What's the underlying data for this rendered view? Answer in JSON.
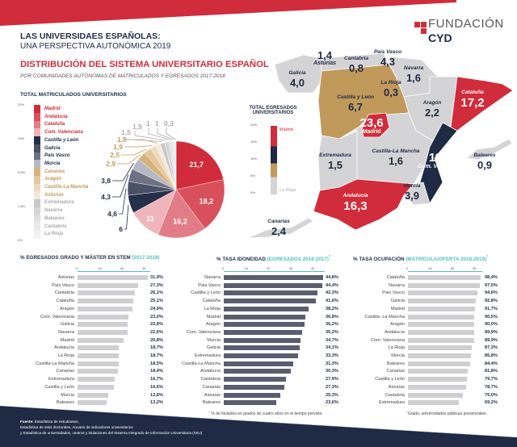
{
  "header": {
    "title": "LAS UNIVERSIDAES ESPAÑOLAS:",
    "subtitle": "UNA PERSPECTIVA AUTONÓMICA 2019",
    "heading": "DISTRIBUCIÓN DEL SISTEMA UNIVERSITARIO ESPAÑOL",
    "subheading": "POR COMUNIDADES AUTÓNOMAS DE MATRICULADOS Y EGRESADOS 2017-2018"
  },
  "logo": {
    "line1": "FUNDACIÓN",
    "line2": "CYD"
  },
  "colors": {
    "red": "#d12c3b",
    "navy": "#1f2a44",
    "gold": "#c19a5b",
    "gray": "#d4d4d6",
    "teal": "#4fc1b8"
  },
  "chart_data": [
    {
      "type": "pie",
      "title": "TOTAL MATRICULADOS UNIVERSITARIOS",
      "scale_ticks": [
        "22%",
        "10%",
        "5,5%",
        "1,5%",
        "0%"
      ],
      "categories": [
        "Madrid",
        "Andalucía",
        "Cataluña",
        "Com. Valenciana",
        "Castilla y León",
        "Galicia",
        "País Vasco",
        "Murcia",
        "Canarias",
        "Aragón",
        "Castilla-La Mancha",
        "Asturias",
        "Extremadura",
        "Navarra",
        "Baleares",
        "Cantabria",
        "La Rioja"
      ],
      "values": [
        21.7,
        18.2,
        16.2,
        11,
        6,
        4.6,
        4.3,
        3.8,
        2.9,
        2.5,
        1.9,
        1.6,
        1.5,
        1.5,
        1,
        1,
        0.3
      ],
      "labels": [
        "21,7",
        "18,2",
        "16,2",
        "11",
        "6",
        "4,6",
        "4,3",
        "3,8",
        "2,9",
        "2,5",
        "1,9",
        "1,6",
        "1,5",
        "1,5",
        "1",
        "1",
        "0,3"
      ],
      "slice_colors": [
        "#d12c3b",
        "#d9505c",
        "#e27c86",
        "#f0b4bb",
        "#252f4a",
        "#4a5065",
        "#6d7284",
        "#b6b9c4",
        "#d8b27a",
        "#e4c79b",
        "#eedbbd",
        "#f3eadb",
        "#c8c8c8",
        "#d6d6d6",
        "#e0e0e0",
        "#eaeaea",
        "#f3f3f3"
      ],
      "legend_colors": [
        "#d12c3b",
        "#d12c3b",
        "#d12c3b",
        "#d12c3b",
        "#1f2a44",
        "#1f2a44",
        "#1f2a44",
        "#1f2a44",
        "#c19a5b",
        "#c19a5b",
        "#c19a5b",
        "#c19a5b",
        "#aaaaaa",
        "#aaaaaa",
        "#aaaaaa",
        "#aaaaaa",
        "#aaaaaa"
      ]
    },
    {
      "type": "map",
      "title": "TOTAL EGRESADOS UNIVERSITARIOS",
      "scale_ticks": [
        "20%",
        "15%",
        "10%",
        "5%",
        "0%"
      ],
      "scale_labels": {
        "top": "Madrid",
        "bottom": "La Rioja"
      },
      "regions": [
        {
          "name": "Galicia",
          "value": "4,0"
        },
        {
          "name": "Asturias",
          "value": "1,4"
        },
        {
          "name": "Cantabria",
          "value": "0,8"
        },
        {
          "name": "País Vasco",
          "value": "4,3"
        },
        {
          "name": "Navarra",
          "value": "1,6"
        },
        {
          "name": "La Rioja",
          "value": "0,3"
        },
        {
          "name": "Castilla y León",
          "value": "6,7"
        },
        {
          "name": "Aragón",
          "value": "2,2"
        },
        {
          "name": "Cataluña",
          "value": "17,2"
        },
        {
          "name": "Madrid",
          "value": "23,6"
        },
        {
          "name": "Castilla-La Mancha",
          "value": "1,6"
        },
        {
          "name": "Extremadura",
          "value": "1,5"
        },
        {
          "name": "Com. Valenciana",
          "value": "11,1"
        },
        {
          "name": "Baleares",
          "value": "0,9"
        },
        {
          "name": "Murcia",
          "value": "3,9"
        },
        {
          "name": "Andalucía",
          "value": "16,3"
        },
        {
          "name": "Canarias",
          "value": "2,4"
        }
      ]
    },
    {
      "type": "bar",
      "title": "% EGRESADOS GRADO Y MÁSTER EN STEM",
      "title_period": "(2017-2018)",
      "ticks": [
        "0",
        "10",
        "20",
        "30"
      ],
      "max": 30,
      "categories": [
        "Asturias",
        "País Vasco",
        "Cantabria",
        "Cataluña",
        "Aragón",
        "Com. Valenciana",
        "Galicia",
        "Navarra",
        "Madrid",
        "Andalucía",
        "La Rioja",
        "Castilla-La Mancha",
        "Canarias",
        "Extremadura",
        "Castilla y León",
        "Murcia",
        "Baleares"
      ],
      "values": [
        31.9,
        27.3,
        26.1,
        25.1,
        24.9,
        23.0,
        22.8,
        22.6,
        20.8,
        18.7,
        18.7,
        18.5,
        18.4,
        16.7,
        16.6,
        13.8,
        13.2
      ],
      "labels": [
        "31,9%",
        "27,3%",
        "26,1%",
        "25,1%",
        "24,9%",
        "23,0%",
        "22,8%",
        "22,6%",
        "20,8%",
        "18,7%",
        "18,7%",
        "18,5%",
        "18,4%",
        "16,7%",
        "16,6%",
        "13,8%",
        "13,2%"
      ]
    },
    {
      "type": "bar",
      "title": "% TASA IDONEIDAD",
      "title_period": "(EGRESADOS 2016-2017)",
      "ticks": [
        "0",
        "10",
        "20",
        "30",
        "40"
      ],
      "max": 40,
      "footnote": "% de titulados en grados de cuatro años en el tiempo previsto.",
      "categories": [
        "Navarra",
        "País Vasco",
        "Castilla y León",
        "Cataluña",
        "La Rioja",
        "Madrid",
        "Aragón",
        "Com. Valenciana",
        "Murcia",
        "Galicia",
        "Extremadura",
        "Castilla-La Mancha",
        "Andalucía",
        "Cantabria",
        "Canarias",
        "Asturias",
        "Baleares"
      ],
      "values": [
        44.8,
        44.4,
        42.3,
        41.6,
        38.2,
        36.8,
        36.2,
        35.2,
        34.7,
        34.1,
        33.3,
        31.3,
        30.3,
        27.9,
        27.3,
        25.3,
        23.6
      ],
      "labels": [
        "44,8%",
        "44,4%",
        "42,3%",
        "41,6%",
        "38,2%",
        "36,8%",
        "36,2%",
        "35,2%",
        "34,7%",
        "34,1%",
        "33,3%",
        "31,3%",
        "30,3%",
        "27,9%",
        "27,3%",
        "25,3%",
        "23,6%"
      ]
    },
    {
      "type": "bar",
      "title": "% TASA OCUPACIÓN",
      "title_period": "(MATRÍCULA/OFERTA 2018-2019)",
      "ticks": [
        "0",
        "30",
        "60",
        "90"
      ],
      "max": 90,
      "footnote": "Grado, universidades públicas presenciales.",
      "categories": [
        "Cataluña",
        "Navarra",
        "País Vasco",
        "Galicia",
        "Madrid",
        "Castilla- La Mancha",
        "Aragón",
        "Andalucía",
        "Com. Valenciana",
        "La Rioja",
        "Murcia",
        "Baleares",
        "Canarias",
        "Castilla y León",
        "Asturias",
        "Cantabria",
        "Extremadura"
      ],
      "values": [
        98.4,
        97.5,
        94.6,
        92.8,
        91.7,
        90.5,
        90.0,
        89.9,
        89.9,
        87.3,
        85.8,
        84.4,
        81.8,
        79.7,
        78.7,
        75.0,
        69.2
      ],
      "labels": [
        "98,4%",
        "97,5%",
        "94,6%",
        "92,8%",
        "91,7%",
        "90,5%",
        "90,0%",
        "89,9%",
        "89,9%",
        "87,3%",
        "85,8%",
        "84,4%",
        "81,8%",
        "79,7%",
        "78,7%",
        "75,0%",
        "69,2%"
      ]
    }
  ],
  "footer": {
    "source_label": "Fuente:",
    "line1": "Estadística de estudiantes,",
    "line2": "Estadística de tesis doctorales, Anuario de indicadores universitarios",
    "line3": "y Estadística de universidades, centros y titulaciones del Sistema Integrado de Información Universitaria (SIIU)"
  }
}
